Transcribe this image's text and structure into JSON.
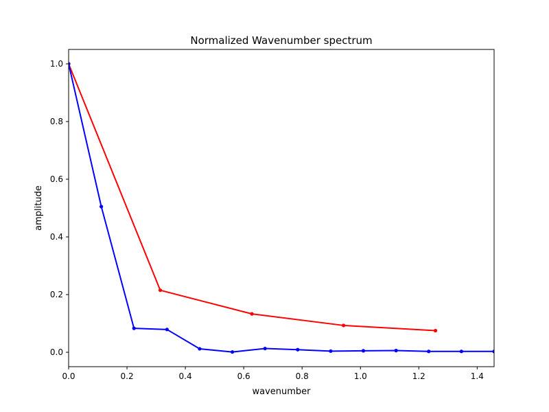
{
  "chart_data": {
    "type": "line",
    "title": "Normalized Wavenumber spectrum",
    "xlabel": "wavenumber",
    "ylabel": "amplitude",
    "xlim": [
      0,
      1.458
    ],
    "ylim": [
      -0.05,
      1.05
    ],
    "xticks": [
      0,
      0.2,
      0.4,
      0.6,
      0.8,
      1.0,
      1.2,
      1.4
    ],
    "xtick_labels": [
      "0.0",
      "0.2",
      "0.4",
      "0.6",
      "0.8",
      "1.0",
      "1.2",
      "1.4"
    ],
    "yticks": [
      0,
      0.2,
      0.4,
      0.6,
      0.8,
      1.0
    ],
    "ytick_labels": [
      "0.0",
      "0.2",
      "0.4",
      "0.6",
      "0.8",
      "1.0"
    ],
    "grid": false,
    "legend": false,
    "series": [
      {
        "color": "#ff0000",
        "marker": "dot",
        "x": [
          0,
          0.314,
          0.628,
          0.942,
          1.257
        ],
        "y": [
          1.0,
          0.215,
          0.133,
          0.093,
          0.075
        ]
      },
      {
        "color": "#0000ff",
        "marker": "dot",
        "x": [
          0,
          0.112,
          0.224,
          0.337,
          0.449,
          0.561,
          0.673,
          0.785,
          0.898,
          1.01,
          1.122,
          1.234,
          1.346,
          1.458
        ],
        "y": [
          1.0,
          0.505,
          0.083,
          0.079,
          0.012,
          0.001,
          0.013,
          0.009,
          0.004,
          0.005,
          0.006,
          0.003,
          0.003,
          0.003
        ]
      }
    ]
  }
}
